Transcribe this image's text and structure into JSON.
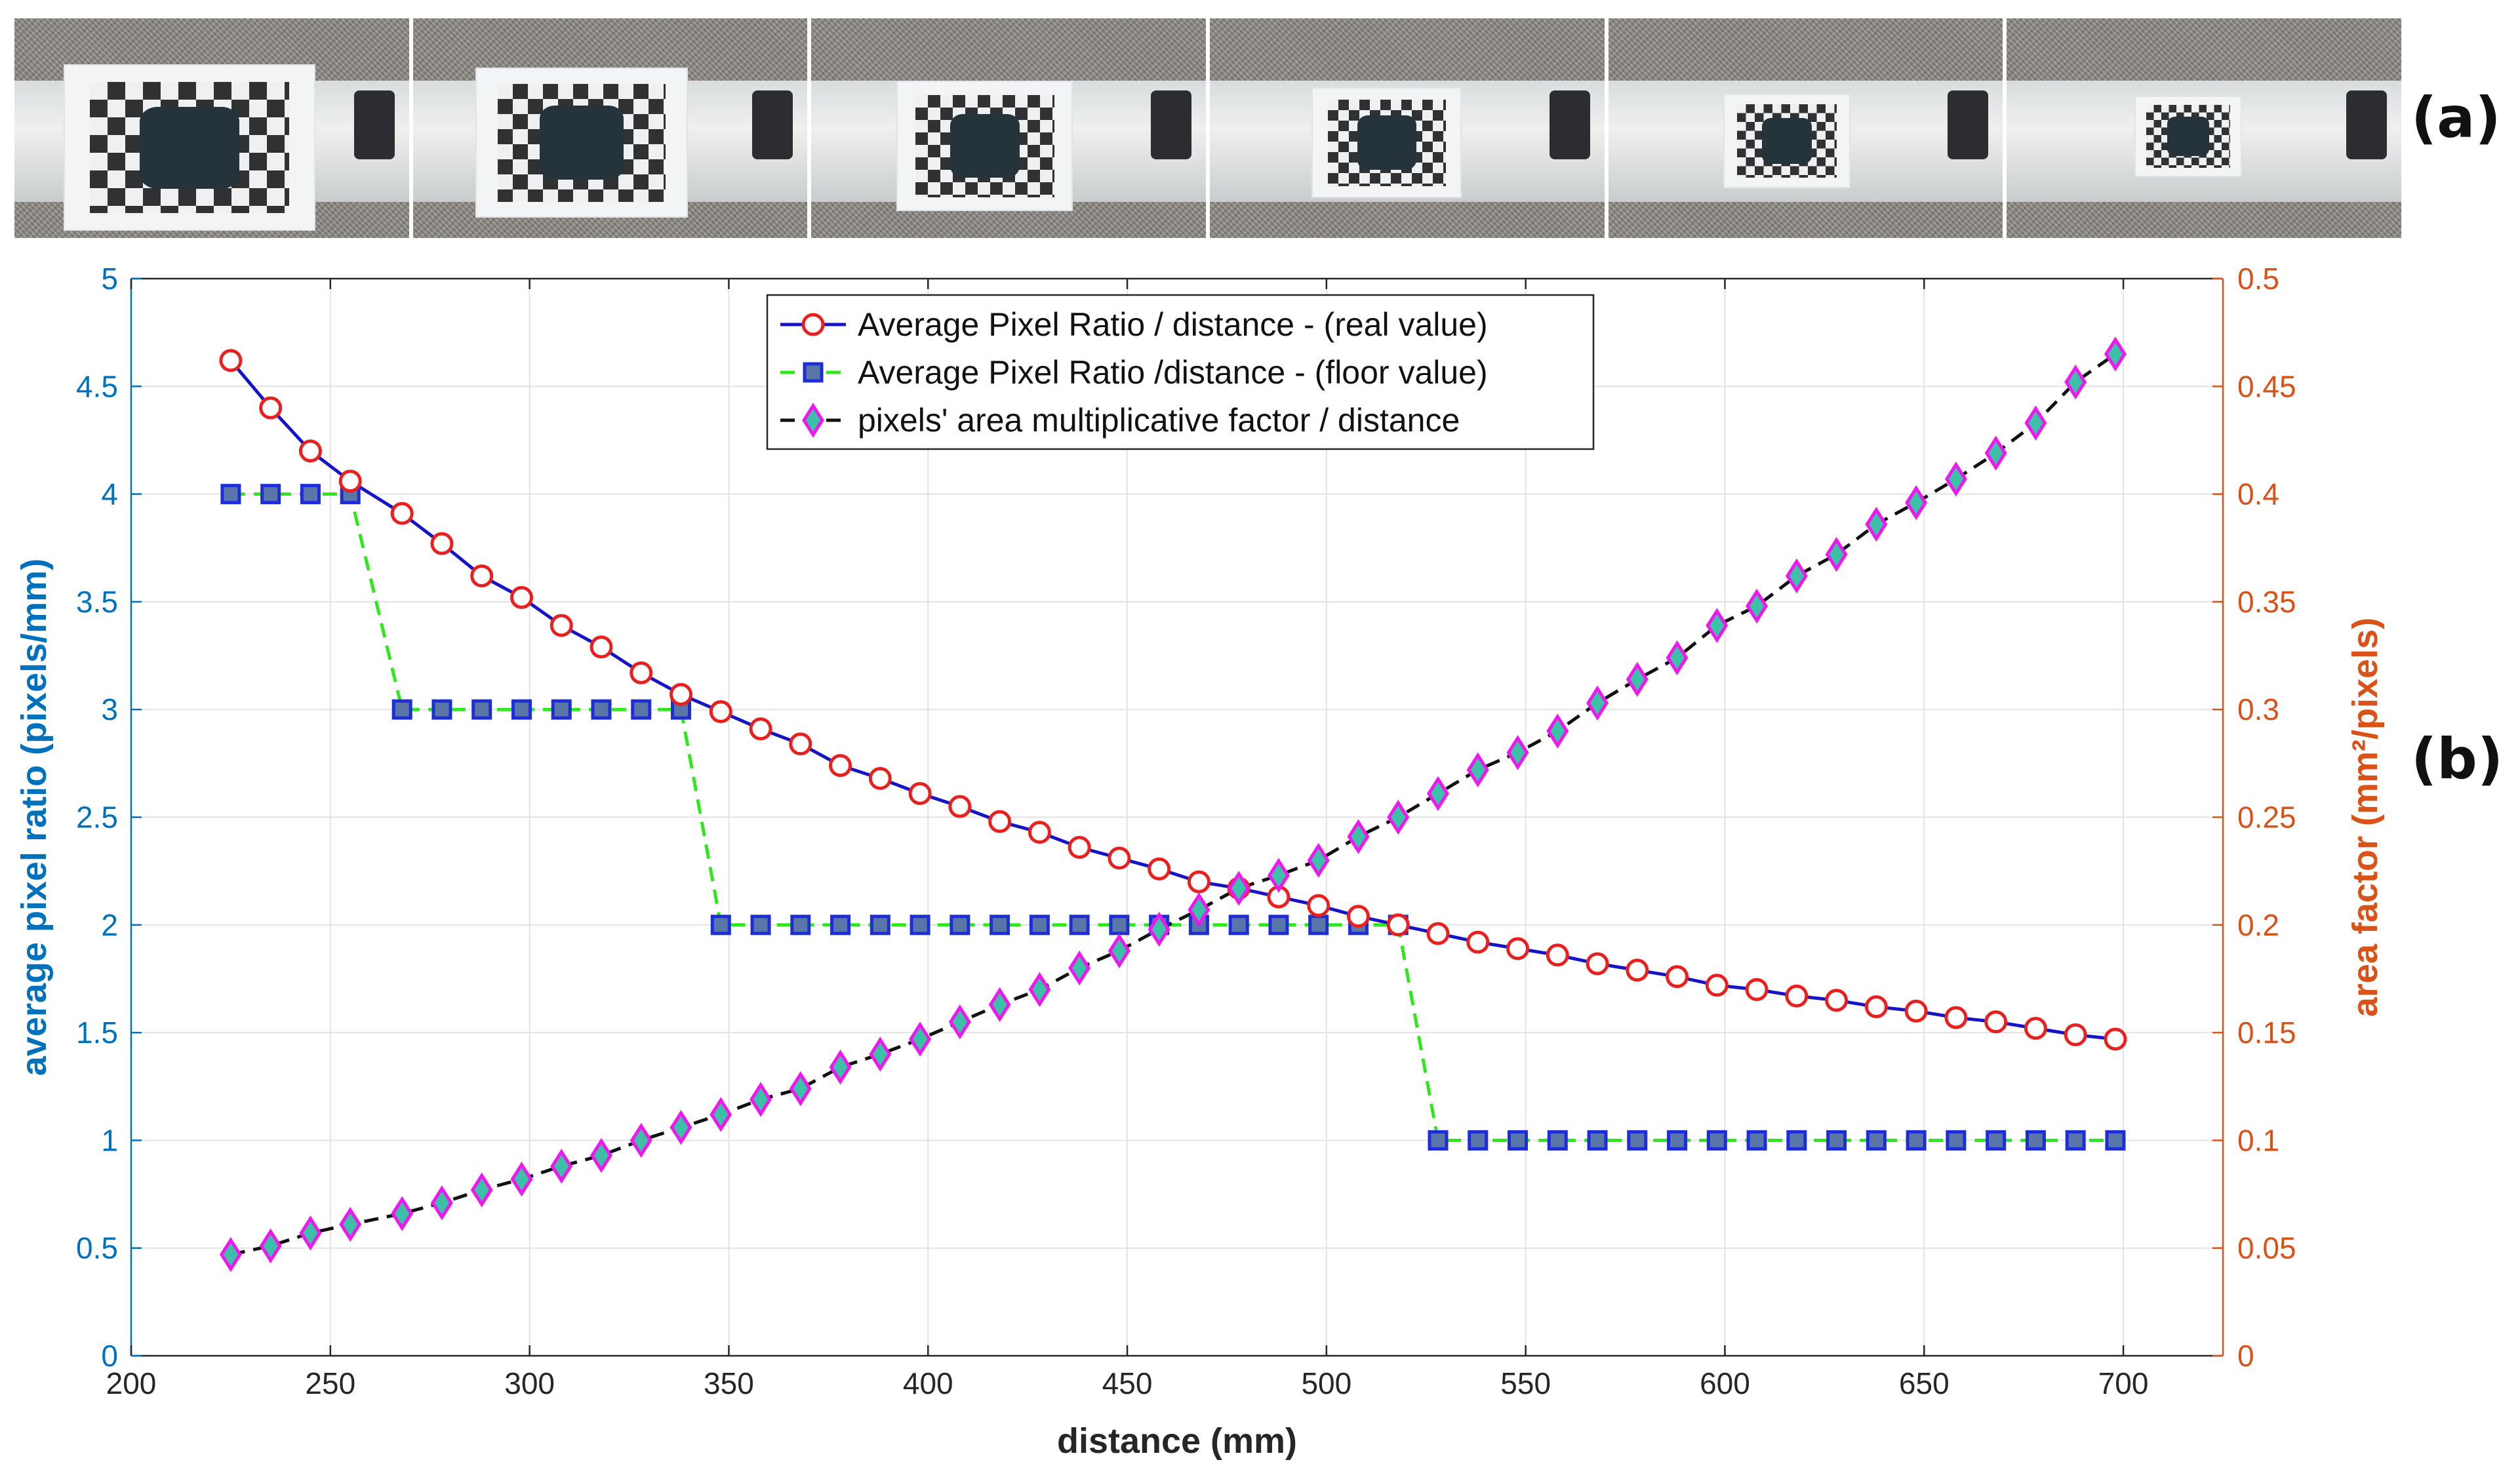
{
  "panel_labels": {
    "a": "(a)",
    "b": "(b)"
  },
  "photos": [
    {
      "name": "photo-1"
    },
    {
      "name": "photo-2"
    },
    {
      "name": "photo-3"
    },
    {
      "name": "photo-4"
    },
    {
      "name": "photo-5"
    },
    {
      "name": "photo-6"
    }
  ],
  "colors": {
    "left_axis": "#0072bd",
    "right_axis": "#d95319",
    "real": "#1515c8",
    "real_marker_edge": "#e8211f",
    "floor": "#2ee81c",
    "floor_marker_fill": "#5a76a8",
    "floor_marker_edge": "#1d2ed8",
    "area": "#111111",
    "area_marker_fill": "#3cc1a8",
    "area_marker_edge": "#ee18ee"
  },
  "chart_data": {
    "type": "line",
    "xlabel": "distance (mm)",
    "ylabel_left": "average pixel ratio (pixels/mm)",
    "ylabel_right": "area factor (mm²/pixels)",
    "xlim": [
      200,
      725
    ],
    "ylim_left": [
      0,
      5
    ],
    "ylim_right": [
      0,
      0.5
    ],
    "x_ticks": [
      "200",
      "250",
      "300",
      "350",
      "400",
      "450",
      "500",
      "550",
      "600",
      "650",
      "700"
    ],
    "y_ticks_left": [
      "0",
      "0.5",
      "1",
      "1.5",
      "2",
      "2.5",
      "3",
      "3.5",
      "4",
      "4.5",
      "5"
    ],
    "y_ticks_right": [
      "0",
      "0.05",
      "0.1",
      "0.15",
      "0.2",
      "0.25",
      "0.3",
      "0.35",
      "0.4",
      "0.45",
      "0.5"
    ],
    "grid": true,
    "legend": "top-center",
    "x": [
      225,
      235,
      245,
      255,
      268,
      278,
      288,
      298,
      308,
      318,
      328,
      338,
      348,
      358,
      368,
      378,
      388,
      398,
      408,
      418,
      428,
      438,
      448,
      458,
      468,
      478,
      488,
      498,
      508,
      518,
      528,
      538,
      548,
      558,
      568,
      578,
      588,
      598,
      608,
      618,
      628,
      638,
      648,
      658,
      668,
      678,
      688,
      698
    ],
    "series": [
      {
        "name": "Average Pixel Ratio / distance - (real value)",
        "axis": "left",
        "values": [
          4.62,
          4.4,
          4.2,
          4.06,
          3.91,
          3.77,
          3.62,
          3.52,
          3.39,
          3.29,
          3.17,
          3.07,
          2.99,
          2.91,
          2.84,
          2.74,
          2.68,
          2.61,
          2.55,
          2.48,
          2.43,
          2.36,
          2.31,
          2.26,
          2.2,
          2.17,
          2.13,
          2.09,
          2.04,
          2.0,
          1.96,
          1.92,
          1.89,
          1.86,
          1.82,
          1.79,
          1.76,
          1.72,
          1.7,
          1.67,
          1.65,
          1.62,
          1.6,
          1.57,
          1.55,
          1.52,
          1.49,
          1.47
        ]
      },
      {
        "name": "Average Pixel Ratio /distance - (floor value)",
        "axis": "left",
        "values": [
          4,
          4,
          4,
          4,
          3,
          3,
          3,
          3,
          3,
          3,
          3,
          3,
          2,
          2,
          2,
          2,
          2,
          2,
          2,
          2,
          2,
          2,
          2,
          2,
          2,
          2,
          2,
          2,
          2,
          2,
          1,
          1,
          1,
          1,
          1,
          1,
          1,
          1,
          1,
          1,
          1,
          1,
          1,
          1,
          1,
          1,
          1,
          1
        ]
      },
      {
        "name": "pixels' area multiplicative factor / distance",
        "axis": "right",
        "values": [
          0.047,
          0.051,
          0.057,
          0.061,
          0.066,
          0.071,
          0.077,
          0.082,
          0.088,
          0.093,
          0.1,
          0.106,
          0.112,
          0.119,
          0.124,
          0.134,
          0.14,
          0.147,
          0.155,
          0.163,
          0.17,
          0.18,
          0.188,
          0.198,
          0.207,
          0.217,
          0.223,
          0.23,
          0.241,
          0.25,
          0.261,
          0.272,
          0.28,
          0.29,
          0.303,
          0.314,
          0.324,
          0.339,
          0.348,
          0.362,
          0.372,
          0.386,
          0.396,
          0.407,
          0.419,
          0.433,
          0.452,
          0.465
        ]
      }
    ]
  }
}
